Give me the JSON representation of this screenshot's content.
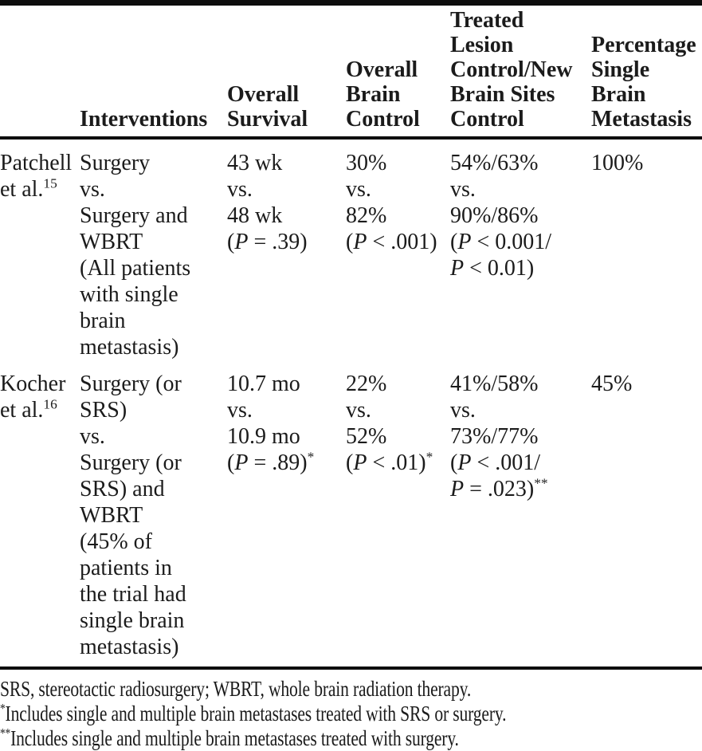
{
  "colors": {
    "background": "#ffffff",
    "text": "#1b1b1b",
    "rule": "#0d0d0d"
  },
  "table": {
    "columns": [
      {
        "id": "study",
        "header_lines": []
      },
      {
        "id": "interventions",
        "header_lines": [
          "Interventions"
        ]
      },
      {
        "id": "overall-survival",
        "header_lines": [
          "Overall",
          "Survival"
        ]
      },
      {
        "id": "overall-brain-control",
        "header_lines": [
          "Overall",
          "Brain",
          "Control"
        ]
      },
      {
        "id": "treated-lesion-control-new-brain-sites-control",
        "header_lines": [
          "Treated",
          "Lesion",
          "Control/New",
          "Brain Sites",
          "Control"
        ]
      },
      {
        "id": "percentage-single-brain-metastasis",
        "header_lines": [
          "Percentage",
          "Single",
          "Brain",
          "Metastasis"
        ]
      }
    ],
    "rows": [
      {
        "id": "patchell",
        "cells": [
          [
            "Patchell",
            "et al.^15"
          ],
          [
            "Surgery",
            "vs.",
            "Surgery and",
            "WBRT",
            "(All patients",
            "with single",
            "brain",
            "metastasis)"
          ],
          [
            "43 wk",
            "vs.",
            "48 wk",
            "(P = .39)"
          ],
          [
            "30%",
            "vs.",
            "82%",
            "(P < .001)"
          ],
          [
            "54%/63%",
            "vs.",
            "90%/86%",
            "(P < 0.001/",
            "P < 0.01)"
          ],
          [
            "100%"
          ]
        ]
      },
      {
        "id": "kocher",
        "cells": [
          [
            "Kocher",
            "et al.^16"
          ],
          [
            "Surgery (or",
            "SRS)",
            "vs.",
            "Surgery (or",
            "SRS) and",
            "WBRT",
            "(45% of",
            "patients in",
            "the trial had",
            "single brain",
            "metastasis)"
          ],
          [
            "10.7 mo",
            "vs.",
            "10.9 mo",
            "(P = .89)^*"
          ],
          [
            "22%",
            "vs.",
            "52%",
            "(P < .01)^*"
          ],
          [
            "41%/58%",
            "vs.",
            "73%/77%",
            "(P < .001/",
            "P = .023)^**"
          ],
          [
            "45%"
          ]
        ]
      }
    ]
  },
  "footnotes": [
    {
      "id": "abbreviations",
      "text": "SRS, stereotactic radiosurgery; WBRT, whole brain radiation therapy."
    },
    {
      "id": "single-asterisk",
      "text": "^*Includes single and multiple brain metastases treated with SRS or surgery."
    },
    {
      "id": "double-asterisk",
      "text": "^**Includes single and multiple brain metastases treated with surgery."
    }
  ]
}
